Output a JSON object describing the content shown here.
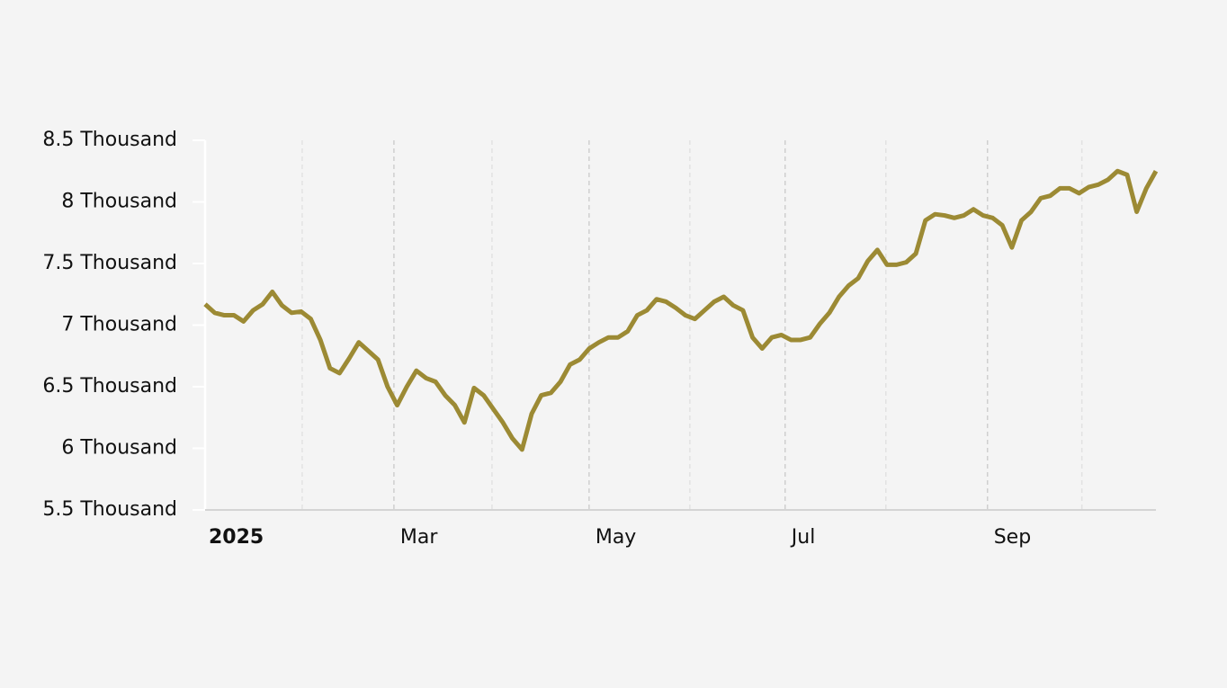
{
  "chart_data": {
    "type": "line",
    "series": [
      {
        "color": "#9c8a34",
        "values": [
          7170,
          7100,
          7080,
          7080,
          7030,
          7120,
          7170,
          7270,
          7160,
          7100,
          7110,
          7050,
          6880,
          6650,
          6610,
          6730,
          6860,
          6790,
          6720,
          6500,
          6350,
          6500,
          6630,
          6570,
          6540,
          6430,
          6350,
          6210,
          6490,
          6430,
          6320,
          6210,
          6080,
          5990,
          6280,
          6430,
          6450,
          6540,
          6680,
          6720,
          6810,
          6860,
          6900,
          6900,
          6950,
          7080,
          7120,
          7210,
          7190,
          7140,
          7080,
          7050,
          7120,
          7190,
          7230,
          7160,
          7120,
          6900,
          6810,
          6900,
          6920,
          6880,
          6880,
          6900,
          7010,
          7100,
          7230,
          7320,
          7380,
          7520,
          7610,
          7490,
          7490,
          7510,
          7580,
          7850,
          7900,
          7890,
          7870,
          7890,
          7940,
          7890,
          7870,
          7810,
          7630,
          7850,
          7920,
          8030,
          8050,
          8110,
          8110,
          8070,
          8120,
          8140,
          8180,
          8250,
          8220,
          7920,
          8110,
          8250
        ]
      }
    ],
    "xlim": [
      0,
      99
    ],
    "xticks": [
      {
        "value": 0,
        "label": "2025"
      },
      {
        "value": 19.66,
        "label": "Mar"
      },
      {
        "value": 39.98,
        "label": "May"
      },
      {
        "value": 60.39,
        "label": "Jul"
      },
      {
        "value": 81.46,
        "label": "Sep"
      }
    ],
    "x_minor_ticks": [
      10.11,
      29.87,
      50.47,
      70.88,
      91.29
    ],
    "ylim": [
      5500,
      8500
    ],
    "yticks": [
      {
        "value": 5500,
        "label": "5.5 Thousand"
      },
      {
        "value": 6000,
        "label": "6 Thousand"
      },
      {
        "value": 6500,
        "label": "6.5 Thousand"
      },
      {
        "value": 7000,
        "label": "7 Thousand"
      },
      {
        "value": 7500,
        "label": "7.5 Thousand"
      },
      {
        "value": 8000,
        "label": "8 Thousand"
      },
      {
        "value": 8500,
        "label": "8.5 Thousand"
      }
    ],
    "grid": true
  }
}
